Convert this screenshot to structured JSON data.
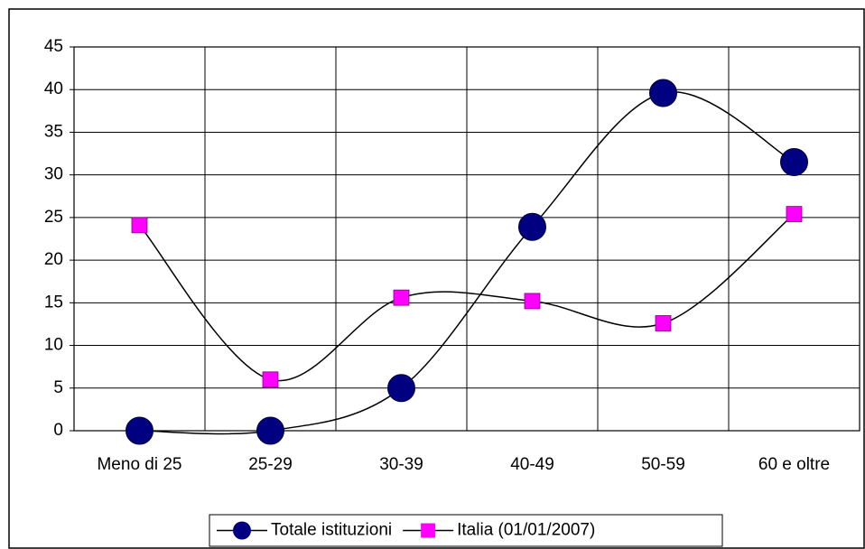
{
  "chart_data": {
    "type": "line",
    "categories": [
      "Meno di 25",
      "25-29",
      "30-39",
      "40-49",
      "50-59",
      "60 e oltre"
    ],
    "series": [
      {
        "name": "Totale istituzioni",
        "color": "#000080",
        "marker": "circle",
        "values": [
          0,
          0,
          5,
          23.9,
          39.6,
          31.5
        ]
      },
      {
        "name": "Italia (01/01/2007)",
        "color": "#ff00ff",
        "marker": "square",
        "values": [
          24.1,
          6,
          15.6,
          15.2,
          12.6,
          25.4
        ]
      }
    ],
    "line_color": "#000000",
    "smooth": true,
    "ylim": [
      0,
      45
    ],
    "yticks": [
      0,
      5,
      10,
      15,
      20,
      25,
      30,
      35,
      40,
      45
    ],
    "grid": true,
    "legend": "bottom"
  }
}
